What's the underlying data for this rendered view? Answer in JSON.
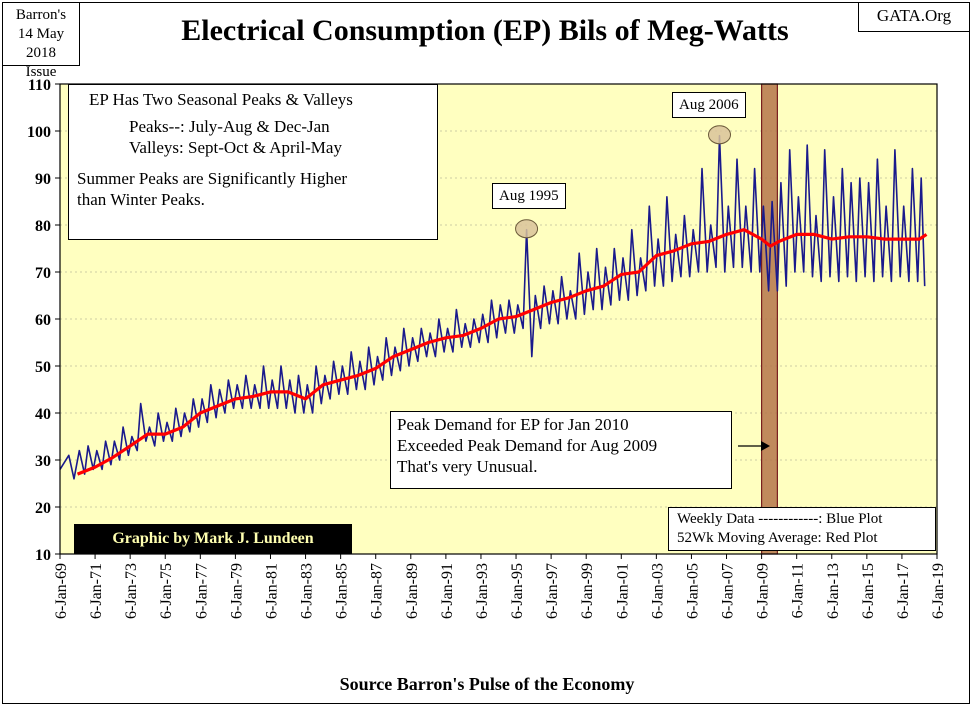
{
  "issue": {
    "line1": "Barron's",
    "line2": "14 May 2018",
    "line3": "Issue"
  },
  "source_tag": "GATA.Org",
  "title": "Electrical Consumption (EP) Bils of Meg-Watts",
  "footer": "Source Barron's  Pulse of the Economy",
  "notes": {
    "line1": "EP Has Two Seasonal Peaks & Valleys",
    "line2": "Peaks--:  July-Aug & Dec-Jan",
    "line3": "Valleys:  Sept-Oct & April-May",
    "line4": "Summer Peaks are Significantly  Higher",
    "line5": "than Winter Peaks."
  },
  "callout": {
    "line1": "Peak Demand for EP for Jan 2010",
    "line2": "Exceeded Peak Demand for Aug 2009",
    "line3": "That's very Unusual."
  },
  "legend": {
    "line1": "Weekly Data ------------: Blue Plot",
    "line2": "52Wk Moving Average: Red Plot"
  },
  "credit": "Graphic by Mark J. Lundeen",
  "peak_tags": {
    "aug1995": "Aug 1995",
    "aug2006": "Aug 2006"
  },
  "colors": {
    "plot_bg": "#ffffc0",
    "weekly_series": "#1a1a8c",
    "moving_average": "#ff0000",
    "highlight_band": "#b5764a",
    "marker_fill": "#d9c39a"
  },
  "chart_data": {
    "type": "line",
    "title": "Electrical Consumption (EP) Bils of Meg-Watts",
    "xlabel": "Source Barron's  Pulse of the Economy",
    "ylabel": "",
    "ylim": [
      10,
      110
    ],
    "yticks": [
      10,
      20,
      30,
      40,
      50,
      60,
      70,
      80,
      90,
      100,
      110
    ],
    "xlim": [
      1969.0,
      2019.0
    ],
    "xtick_labels": [
      "6-Jan-69",
      "6-Jan-71",
      "6-Jan-73",
      "6-Jan-75",
      "6-Jan-77",
      "6-Jan-79",
      "6-Jan-81",
      "6-Jan-83",
      "6-Jan-85",
      "6-Jan-87",
      "6-Jan-89",
      "6-Jan-91",
      "6-Jan-93",
      "6-Jan-95",
      "6-Jan-97",
      "6-Jan-99",
      "6-Jan-01",
      "6-Jan-03",
      "6-Jan-05",
      "6-Jan-07",
      "6-Jan-09",
      "6-Jan-11",
      "6-Jan-13",
      "6-Jan-15",
      "6-Jan-17",
      "6-Jan-19"
    ],
    "grid": true,
    "legend": "bottom-right",
    "series": [
      {
        "name": "Weekly Data",
        "sampling": "approximate seasonal envelope traced from the plot",
        "points": [
          [
            1969.0,
            28
          ],
          [
            1969.5,
            31
          ],
          [
            1969.8,
            26
          ],
          [
            1970.1,
            32
          ],
          [
            1970.4,
            27
          ],
          [
            1970.6,
            33
          ],
          [
            1970.9,
            28
          ],
          [
            1971.1,
            32
          ],
          [
            1971.4,
            28
          ],
          [
            1971.6,
            34
          ],
          [
            1971.9,
            29
          ],
          [
            1972.1,
            34
          ],
          [
            1972.4,
            30
          ],
          [
            1972.6,
            37
          ],
          [
            1972.9,
            31
          ],
          [
            1973.1,
            35
          ],
          [
            1973.4,
            32
          ],
          [
            1973.6,
            42
          ],
          [
            1973.9,
            34
          ],
          [
            1974.1,
            37
          ],
          [
            1974.4,
            33
          ],
          [
            1974.6,
            40
          ],
          [
            1974.9,
            34
          ],
          [
            1975.1,
            38
          ],
          [
            1975.4,
            34
          ],
          [
            1975.6,
            41
          ],
          [
            1975.9,
            35
          ],
          [
            1976.1,
            40
          ],
          [
            1976.4,
            36
          ],
          [
            1976.6,
            43
          ],
          [
            1976.9,
            37
          ],
          [
            1977.1,
            43
          ],
          [
            1977.4,
            38
          ],
          [
            1977.6,
            46
          ],
          [
            1977.9,
            39
          ],
          [
            1978.1,
            45
          ],
          [
            1978.4,
            40
          ],
          [
            1978.6,
            47
          ],
          [
            1978.9,
            41
          ],
          [
            1979.1,
            46
          ],
          [
            1979.4,
            41
          ],
          [
            1979.6,
            48
          ],
          [
            1979.9,
            41
          ],
          [
            1980.1,
            46
          ],
          [
            1980.4,
            41
          ],
          [
            1980.6,
            50
          ],
          [
            1980.9,
            41
          ],
          [
            1981.1,
            47
          ],
          [
            1981.4,
            41
          ],
          [
            1981.6,
            50
          ],
          [
            1981.9,
            41
          ],
          [
            1982.1,
            47
          ],
          [
            1982.4,
            40
          ],
          [
            1982.6,
            48
          ],
          [
            1982.9,
            40
          ],
          [
            1983.1,
            46
          ],
          [
            1983.4,
            40
          ],
          [
            1983.6,
            50
          ],
          [
            1983.9,
            42
          ],
          [
            1984.1,
            48
          ],
          [
            1984.4,
            43
          ],
          [
            1984.6,
            51
          ],
          [
            1984.9,
            44
          ],
          [
            1985.1,
            50
          ],
          [
            1985.4,
            44
          ],
          [
            1985.6,
            53
          ],
          [
            1985.9,
            45
          ],
          [
            1986.1,
            51
          ],
          [
            1986.4,
            45
          ],
          [
            1986.6,
            54
          ],
          [
            1986.9,
            46
          ],
          [
            1987.1,
            52
          ],
          [
            1987.4,
            47
          ],
          [
            1987.6,
            56
          ],
          [
            1987.9,
            48
          ],
          [
            1988.1,
            54
          ],
          [
            1988.4,
            49
          ],
          [
            1988.6,
            58
          ],
          [
            1988.9,
            50
          ],
          [
            1989.1,
            56
          ],
          [
            1989.4,
            51
          ],
          [
            1989.6,
            58
          ],
          [
            1989.9,
            52
          ],
          [
            1990.1,
            57
          ],
          [
            1990.4,
            52
          ],
          [
            1990.6,
            60
          ],
          [
            1990.9,
            53
          ],
          [
            1991.1,
            58
          ],
          [
            1991.4,
            53
          ],
          [
            1991.6,
            62
          ],
          [
            1991.9,
            54
          ],
          [
            1992.1,
            59
          ],
          [
            1992.4,
            54
          ],
          [
            1992.6,
            60
          ],
          [
            1992.9,
            55
          ],
          [
            1993.1,
            61
          ],
          [
            1993.4,
            55
          ],
          [
            1993.6,
            64
          ],
          [
            1993.9,
            56
          ],
          [
            1994.1,
            63
          ],
          [
            1994.4,
            57
          ],
          [
            1994.6,
            64
          ],
          [
            1994.9,
            57
          ],
          [
            1995.1,
            63
          ],
          [
            1995.4,
            58
          ],
          [
            1995.6,
            79
          ],
          [
            1995.9,
            52
          ],
          [
            1996.1,
            65
          ],
          [
            1996.4,
            58
          ],
          [
            1996.6,
            67
          ],
          [
            1996.9,
            59
          ],
          [
            1997.1,
            66
          ],
          [
            1997.4,
            59
          ],
          [
            1997.6,
            69
          ],
          [
            1997.9,
            60
          ],
          [
            1998.1,
            66
          ],
          [
            1998.4,
            60
          ],
          [
            1998.6,
            74
          ],
          [
            1998.9,
            61
          ],
          [
            1999.1,
            70
          ],
          [
            1999.4,
            62
          ],
          [
            1999.6,
            75
          ],
          [
            1999.9,
            62
          ],
          [
            2000.1,
            71
          ],
          [
            2000.4,
            63
          ],
          [
            2000.6,
            75
          ],
          [
            2000.9,
            64
          ],
          [
            2001.1,
            73
          ],
          [
            2001.4,
            64
          ],
          [
            2001.6,
            79
          ],
          [
            2001.9,
            65
          ],
          [
            2002.1,
            73
          ],
          [
            2002.4,
            66
          ],
          [
            2002.6,
            84
          ],
          [
            2002.9,
            67
          ],
          [
            2003.1,
            77
          ],
          [
            2003.4,
            67
          ],
          [
            2003.6,
            86
          ],
          [
            2003.9,
            68
          ],
          [
            2004.1,
            78
          ],
          [
            2004.4,
            69
          ],
          [
            2004.6,
            82
          ],
          [
            2004.9,
            69
          ],
          [
            2005.1,
            79
          ],
          [
            2005.4,
            70
          ],
          [
            2005.6,
            92
          ],
          [
            2005.9,
            70
          ],
          [
            2006.1,
            80
          ],
          [
            2006.4,
            71
          ],
          [
            2006.6,
            99
          ],
          [
            2006.9,
            70
          ],
          [
            2007.1,
            84
          ],
          [
            2007.4,
            71
          ],
          [
            2007.6,
            94
          ],
          [
            2007.9,
            71
          ],
          [
            2008.1,
            84
          ],
          [
            2008.4,
            70
          ],
          [
            2008.6,
            92
          ],
          [
            2008.9,
            70
          ],
          [
            2009.1,
            84
          ],
          [
            2009.4,
            66
          ],
          [
            2009.6,
            85
          ],
          [
            2009.9,
            66
          ],
          [
            2010.1,
            89
          ],
          [
            2010.4,
            67
          ],
          [
            2010.6,
            96
          ],
          [
            2010.9,
            70
          ],
          [
            2011.1,
            86
          ],
          [
            2011.4,
            70
          ],
          [
            2011.6,
            97
          ],
          [
            2011.9,
            69
          ],
          [
            2012.1,
            82
          ],
          [
            2012.4,
            68
          ],
          [
            2012.6,
            96
          ],
          [
            2012.9,
            69
          ],
          [
            2013.1,
            86
          ],
          [
            2013.4,
            68
          ],
          [
            2013.6,
            92
          ],
          [
            2013.9,
            69
          ],
          [
            2014.1,
            89
          ],
          [
            2014.4,
            68
          ],
          [
            2014.6,
            90
          ],
          [
            2014.9,
            69
          ],
          [
            2015.1,
            89
          ],
          [
            2015.4,
            68
          ],
          [
            2015.6,
            94
          ],
          [
            2015.9,
            69
          ],
          [
            2016.1,
            84
          ],
          [
            2016.4,
            68
          ],
          [
            2016.6,
            96
          ],
          [
            2016.9,
            69
          ],
          [
            2017.1,
            84
          ],
          [
            2017.4,
            68
          ],
          [
            2017.6,
            92
          ],
          [
            2017.9,
            68
          ],
          [
            2018.1,
            90
          ],
          [
            2018.3,
            67
          ]
        ]
      },
      {
        "name": "52Wk Moving Average",
        "points": [
          [
            1970.0,
            27
          ],
          [
            1971.0,
            28.5
          ],
          [
            1972.0,
            30.5
          ],
          [
            1973.0,
            33
          ],
          [
            1974.0,
            35.5
          ],
          [
            1975.0,
            35.5
          ],
          [
            1976.0,
            37
          ],
          [
            1977.0,
            40
          ],
          [
            1978.0,
            41.5
          ],
          [
            1979.0,
            43
          ],
          [
            1980.0,
            43.5
          ],
          [
            1981.0,
            44.5
          ],
          [
            1982.0,
            44.5
          ],
          [
            1983.0,
            43
          ],
          [
            1984.0,
            46
          ],
          [
            1985.0,
            47
          ],
          [
            1986.0,
            48
          ],
          [
            1987.0,
            49.5
          ],
          [
            1988.0,
            52
          ],
          [
            1989.0,
            53.5
          ],
          [
            1990.0,
            55
          ],
          [
            1991.0,
            56
          ],
          [
            1992.0,
            56.5
          ],
          [
            1993.0,
            58
          ],
          [
            1994.0,
            60
          ],
          [
            1995.0,
            60.5
          ],
          [
            1996.0,
            62
          ],
          [
            1997.0,
            63.5
          ],
          [
            1998.0,
            64.5
          ],
          [
            1999.0,
            66
          ],
          [
            2000.0,
            67
          ],
          [
            2001.0,
            69.5
          ],
          [
            2002.0,
            70
          ],
          [
            2003.0,
            73.5
          ],
          [
            2004.0,
            74.5
          ],
          [
            2005.0,
            76
          ],
          [
            2006.0,
            76.5
          ],
          [
            2007.0,
            78
          ],
          [
            2008.0,
            79
          ],
          [
            2009.0,
            77
          ],
          [
            2009.5,
            75.5
          ],
          [
            2010.0,
            76.5
          ],
          [
            2011.0,
            78
          ],
          [
            2012.0,
            78
          ],
          [
            2013.0,
            77
          ],
          [
            2014.0,
            77.5
          ],
          [
            2015.0,
            77.5
          ],
          [
            2016.0,
            77
          ],
          [
            2017.0,
            77
          ],
          [
            2018.0,
            77
          ],
          [
            2018.4,
            78
          ]
        ]
      }
    ],
    "highlight_band": [
      2009.0,
      2009.9
    ],
    "markers": [
      {
        "label": "Aug 1995",
        "x": 1995.6,
        "y": 79
      },
      {
        "label": "Aug 2006",
        "x": 2006.6,
        "y": 99
      }
    ]
  }
}
